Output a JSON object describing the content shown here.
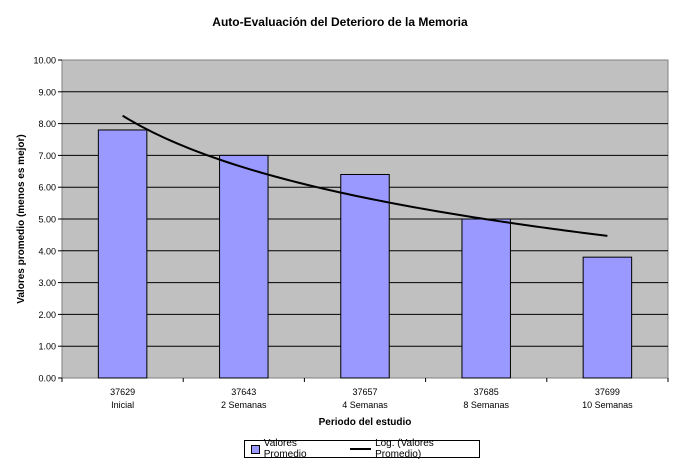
{
  "chart_data": {
    "type": "bar",
    "title": "Auto-Evaluación del Deterioro de la Memoria",
    "xlabel": "Periodo del estudio",
    "ylabel": "Valores promedio (menos es mejor)",
    "ylim": [
      0,
      10
    ],
    "yticks": [
      "0.00",
      "1.00",
      "2.00",
      "3.00",
      "4.00",
      "5.00",
      "6.00",
      "7.00",
      "8.00",
      "9.00",
      "10.00"
    ],
    "grid": true,
    "legend_position": "bottom",
    "categories": [
      {
        "code": "37629",
        "label": "Inicial"
      },
      {
        "code": "37643",
        "label": "2 Semanas"
      },
      {
        "code": "37657",
        "label": "4 Semanas"
      },
      {
        "code": "37685",
        "label": "8 Semanas"
      },
      {
        "code": "37699",
        "label": "10 Semanas"
      }
    ],
    "series": [
      {
        "name": "Valores Promedio",
        "type": "bar",
        "values": [
          7.8,
          7.0,
          6.4,
          5.0,
          3.8
        ],
        "color": "#9999ff"
      },
      {
        "name": "Log. (Valores Promedio)",
        "type": "line",
        "trendline": "logarithmic",
        "color": "#000000"
      }
    ],
    "plot_background": "#c0c0c0"
  }
}
